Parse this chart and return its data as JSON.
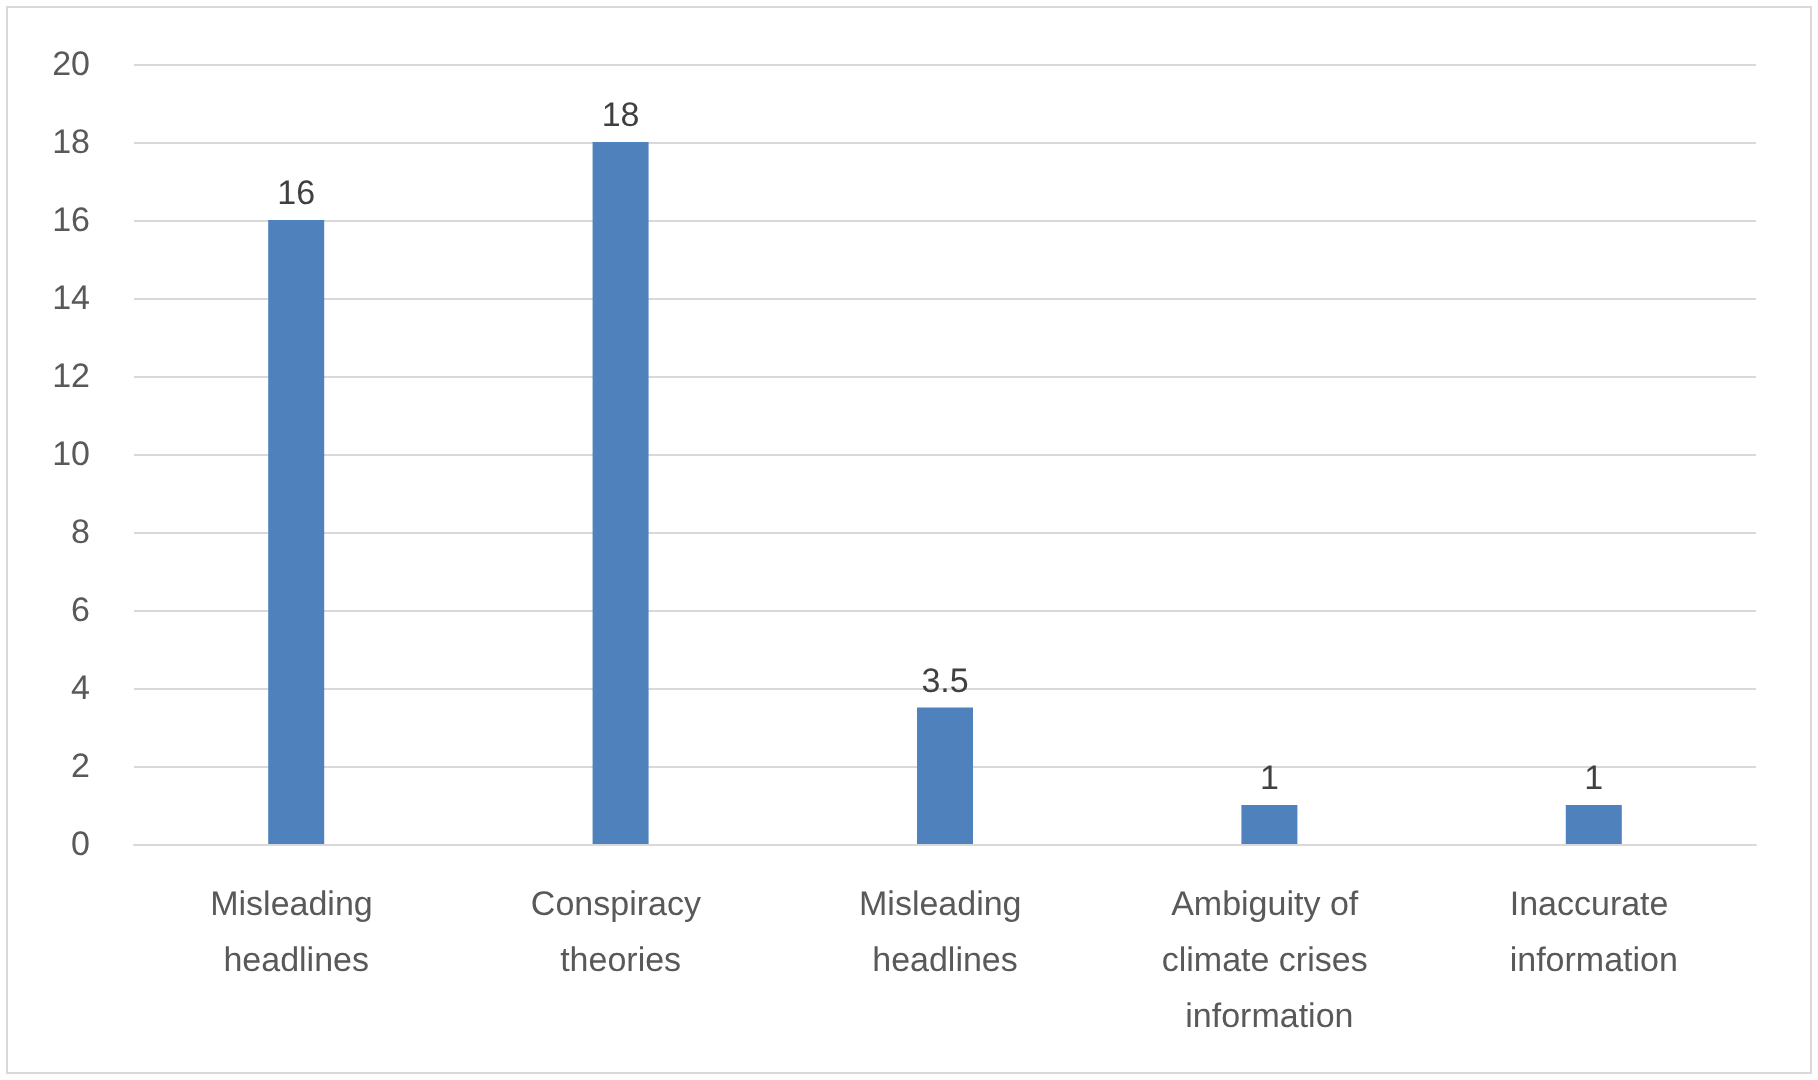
{
  "chart_data": {
    "type": "bar",
    "categories": [
      "Misleading headlines",
      "Conspiracy theories",
      "Misleading headlines",
      "Ambiguity of climate crises information",
      "Inaccurate information"
    ],
    "values": [
      16,
      18,
      3.5,
      1,
      1
    ],
    "color": "#4f81bd",
    "ylim": [
      0,
      20
    ],
    "yticks": [
      0,
      2,
      4,
      6,
      8,
      10,
      12,
      14,
      16,
      18,
      20
    ],
    "grid": "y",
    "data_labels": true
  }
}
